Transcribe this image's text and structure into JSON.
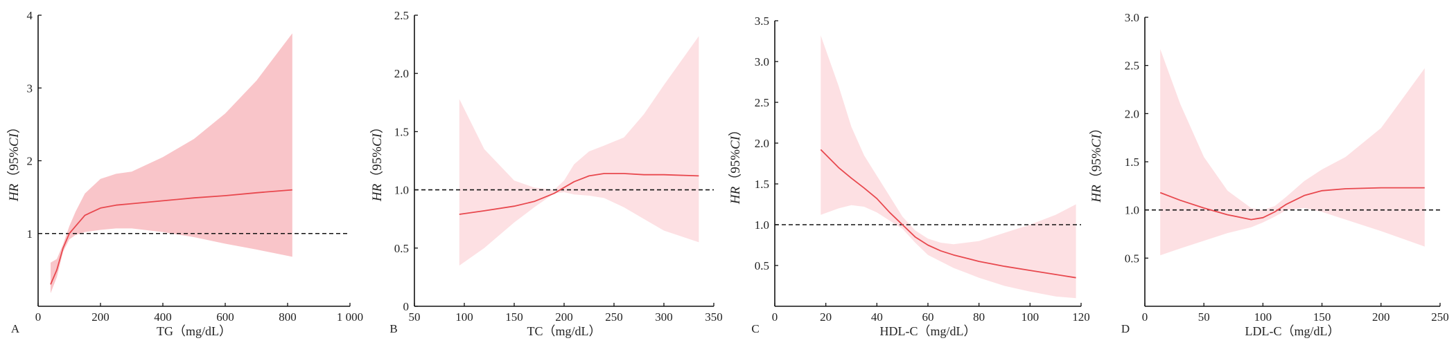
{
  "chart_data": [
    {
      "type": "line",
      "panel": "A",
      "xlabel": "TG（mg/dL）",
      "ylabel": {
        "hr": "HR",
        "open": "（95%",
        "ci": "CI",
        "close": "）"
      },
      "xlim": [
        0,
        1000
      ],
      "ylim": [
        0,
        4
      ],
      "xticks": [
        0,
        200,
        400,
        600,
        800,
        1000
      ],
      "xtick_labels": [
        "0",
        "200",
        "400",
        "600",
        "800",
        "1 000"
      ],
      "yticks": [
        1,
        2,
        3,
        4
      ],
      "ytick_labels": [
        "1",
        "2",
        "3",
        "4"
      ],
      "y_zero_label_on_x_axis": true,
      "reference_line": 1,
      "colors": {
        "line": "#e8484e",
        "band": "#f9c5c9",
        "reference": "#111111"
      },
      "series": [
        {
          "x": [
            40,
            60,
            80,
            100,
            120,
            150,
            200,
            250,
            300,
            400,
            500,
            600,
            700,
            815
          ],
          "y": [
            0.3,
            0.5,
            0.8,
            1.0,
            1.1,
            1.25,
            1.35,
            1.39,
            1.41,
            1.45,
            1.49,
            1.52,
            1.56,
            1.6
          ],
          "lower": [
            0.18,
            0.4,
            0.75,
            0.92,
            0.98,
            1.02,
            1.05,
            1.07,
            1.07,
            1.02,
            0.95,
            0.86,
            0.78,
            0.68
          ],
          "upper": [
            0.6,
            0.65,
            0.85,
            1.1,
            1.3,
            1.55,
            1.75,
            1.82,
            1.85,
            2.05,
            2.3,
            2.65,
            3.1,
            3.75
          ]
        }
      ]
    },
    {
      "type": "line",
      "panel": "B",
      "xlabel": "TC（mg/dL）",
      "ylabel": {
        "hr": "HR",
        "open": "（95%",
        "ci": "CI",
        "close": "）"
      },
      "xlim": [
        50,
        350
      ],
      "ylim": [
        0,
        2.5
      ],
      "xticks": [
        50,
        100,
        150,
        200,
        250,
        300,
        350
      ],
      "xtick_labels": [
        "50",
        "100",
        "150",
        "200",
        "250",
        "300",
        "350"
      ],
      "yticks": [
        0,
        0.5,
        1.0,
        1.5,
        2.0,
        2.5
      ],
      "ytick_labels": [
        "0",
        "0.5",
        "1.0",
        "1.5",
        "2.0",
        "2.5"
      ],
      "reference_line": 1.0,
      "colors": {
        "line": "#e8484e",
        "band": "#fde0e3",
        "reference": "#111111"
      },
      "series": [
        {
          "x": [
            95,
            120,
            150,
            170,
            190,
            200,
            210,
            225,
            240,
            260,
            280,
            300,
            335
          ],
          "y": [
            0.79,
            0.82,
            0.86,
            0.9,
            0.97,
            1.02,
            1.07,
            1.12,
            1.14,
            1.14,
            1.13,
            1.13,
            1.12
          ],
          "lower": [
            0.35,
            0.5,
            0.72,
            0.85,
            0.97,
            0.98,
            0.96,
            0.95,
            0.93,
            0.85,
            0.75,
            0.65,
            0.55
          ],
          "upper": [
            1.78,
            1.35,
            1.08,
            1.02,
            1.0,
            1.08,
            1.22,
            1.33,
            1.38,
            1.45,
            1.65,
            1.9,
            2.32
          ]
        }
      ]
    },
    {
      "type": "line",
      "panel": "C",
      "xlabel": "HDL-C（mg/dL）",
      "ylabel": {
        "hr": "HR",
        "open": "（95%",
        "ci": "CI",
        "close": "）"
      },
      "xlim": [
        0,
        120
      ],
      "ylim": [
        0,
        3.5
      ],
      "xticks": [
        0,
        20,
        40,
        60,
        80,
        100,
        120
      ],
      "xtick_labels": [
        "0",
        "20",
        "40",
        "60",
        "80",
        "100",
        "120"
      ],
      "yticks": [
        0.5,
        1.0,
        1.5,
        2.0,
        2.5,
        3.0,
        3.5
      ],
      "ytick_labels": [
        "0.5",
        "1.0",
        "1.5",
        "2.0",
        "2.5",
        "3.0",
        "3.5"
      ],
      "reference_line": 1.0,
      "colors": {
        "line": "#e8484e",
        "band": "#fde0e3",
        "reference": "#111111"
      },
      "series": [
        {
          "x": [
            18,
            25,
            30,
            35,
            40,
            45,
            50,
            55,
            60,
            65,
            70,
            80,
            90,
            100,
            110,
            118
          ],
          "y": [
            1.92,
            1.7,
            1.57,
            1.45,
            1.32,
            1.15,
            1.0,
            0.85,
            0.75,
            0.68,
            0.63,
            0.55,
            0.49,
            0.44,
            0.39,
            0.35
          ],
          "lower": [
            1.12,
            1.2,
            1.24,
            1.22,
            1.15,
            1.05,
            0.95,
            0.78,
            0.63,
            0.55,
            0.47,
            0.35,
            0.25,
            0.18,
            0.12,
            0.1
          ],
          "upper": [
            3.32,
            2.7,
            2.2,
            1.85,
            1.6,
            1.35,
            1.1,
            0.93,
            0.83,
            0.78,
            0.76,
            0.8,
            0.9,
            1.0,
            1.12,
            1.25
          ]
        }
      ]
    },
    {
      "type": "line",
      "panel": "D",
      "xlabel": "LDL-C（mg/dL）",
      "ylabel": {
        "hr": "HR",
        "open": "（95%",
        "ci": "CI",
        "close": "）"
      },
      "xlim": [
        0,
        250
      ],
      "ylim": [
        0,
        3.0
      ],
      "xticks": [
        0,
        50,
        100,
        150,
        200,
        250
      ],
      "xtick_labels": [
        "0",
        "50",
        "100",
        "150",
        "200",
        "250"
      ],
      "yticks": [
        0.5,
        1.0,
        1.5,
        2.0,
        2.5,
        3.0
      ],
      "ytick_labels": [
        "0.5",
        "1.0",
        "1.5",
        "2.0",
        "2.5",
        "3.0"
      ],
      "reference_line": 1.0,
      "colors": {
        "line": "#e8484e",
        "band": "#fde0e3",
        "reference": "#111111"
      },
      "series": [
        {
          "x": [
            13,
            30,
            50,
            70,
            90,
            100,
            110,
            120,
            135,
            150,
            170,
            200,
            237
          ],
          "y": [
            1.18,
            1.1,
            1.02,
            0.95,
            0.9,
            0.92,
            0.98,
            1.06,
            1.15,
            1.2,
            1.22,
            1.23,
            1.23
          ],
          "lower": [
            0.53,
            0.6,
            0.68,
            0.76,
            0.82,
            0.87,
            0.93,
            1.0,
            1.02,
            0.98,
            0.9,
            0.78,
            0.62
          ],
          "upper": [
            2.67,
            2.1,
            1.55,
            1.2,
            1.02,
            1.0,
            1.04,
            1.14,
            1.3,
            1.42,
            1.55,
            1.85,
            2.47
          ]
        }
      ]
    }
  ]
}
